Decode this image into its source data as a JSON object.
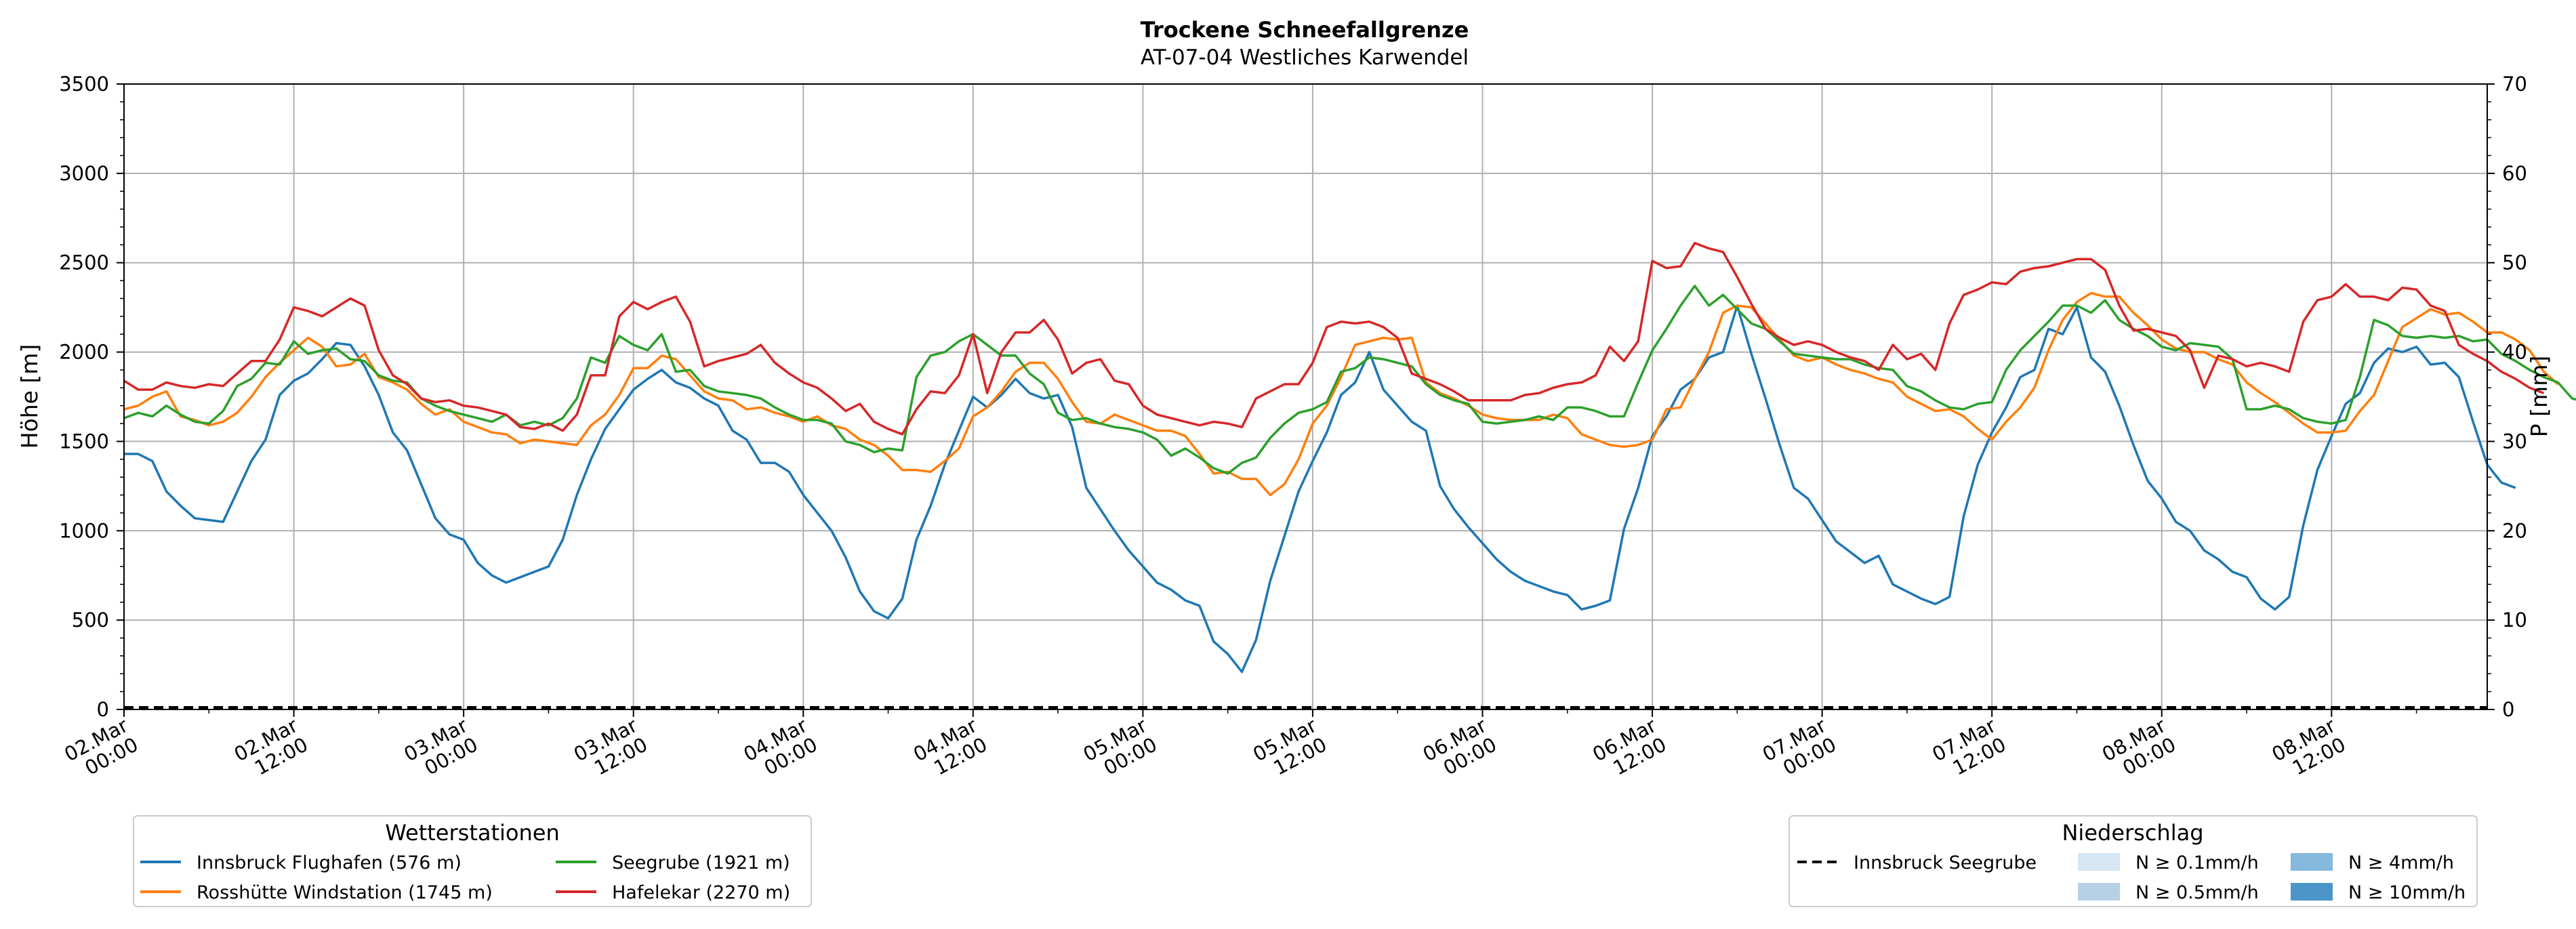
{
  "title": "Trockene Schneefallgrenze",
  "subtitle": "AT-07-04 Westliches Karwendel",
  "colors": {
    "grid": "#b0b0b0",
    "axis": "#000000",
    "precip_light": "#d6e6f4",
    "precip_mid": "#b6d0e6",
    "precip_high": "#84b8dd",
    "precip_max": "#4b95c8"
  },
  "chart_data": {
    "type": "line",
    "ylabel": "Höhe [m]",
    "ylabel_right": "P [mm]",
    "ylim": [
      0,
      3500
    ],
    "ylim_right": [
      0,
      70
    ],
    "y_ticks": [
      "0",
      "500",
      "1000",
      "1500",
      "2000",
      "2500",
      "3000",
      "3500"
    ],
    "y_ticks_right": [
      "0",
      "10",
      "20",
      "30",
      "40",
      "50",
      "60",
      "70"
    ],
    "grid": true,
    "x_start": "2024-03-02 00:00",
    "x_hours": 167,
    "x_ticks": [
      {
        "line1": "02.Mar",
        "line2": "00:00"
      },
      {
        "line1": "02.Mar",
        "line2": "12:00"
      },
      {
        "line1": "03.Mar",
        "line2": "00:00"
      },
      {
        "line1": "03.Mar",
        "line2": "12:00"
      },
      {
        "line1": "04.Mar",
        "line2": "00:00"
      },
      {
        "line1": "04.Mar",
        "line2": "12:00"
      },
      {
        "line1": "05.Mar",
        "line2": "00:00"
      },
      {
        "line1": "05.Mar",
        "line2": "12:00"
      },
      {
        "line1": "06.Mar",
        "line2": "00:00"
      },
      {
        "line1": "06.Mar",
        "line2": "12:00"
      },
      {
        "line1": "07.Mar",
        "line2": "00:00"
      },
      {
        "line1": "07.Mar",
        "line2": "12:00"
      },
      {
        "line1": "08.Mar",
        "line2": "00:00"
      },
      {
        "line1": "08.Mar",
        "line2": "12:00"
      }
    ],
    "series": [
      {
        "name": "Innsbruck Flughafen (576 m)",
        "color": "#1f77b4",
        "values": [
          1430,
          1430,
          1390,
          1220,
          1140,
          1070,
          1060,
          1050,
          1220,
          1390,
          1510,
          1760,
          1840,
          1880,
          1960,
          2050,
          2040,
          1920,
          1760,
          1550,
          1450,
          1260,
          1070,
          980,
          950,
          820,
          750,
          710,
          740,
          770,
          800,
          950,
          1200,
          1400,
          1570,
          1680,
          1790,
          1850,
          1900,
          1830,
          1800,
          1740,
          1700,
          1560,
          1510,
          1380,
          1380,
          1330,
          1200,
          1100,
          1000,
          850,
          660,
          550,
          510,
          620,
          950,
          1140,
          1370,
          1560,
          1750,
          1690,
          1760,
          1850,
          1770,
          1740,
          1760,
          1580,
          1240,
          1120,
          1000,
          890,
          800,
          710,
          670,
          610,
          580,
          380,
          310,
          210,
          390,
          720,
          970,
          1220,
          1390,
          1550,
          1760,
          1830,
          2000,
          1790,
          1700,
          1610,
          1560,
          1250,
          1120,
          1020,
          930,
          840,
          770,
          720,
          690,
          660,
          640,
          560,
          580,
          610,
          1010,
          1240,
          1530,
          1640,
          1790,
          1850,
          1970,
          2000,
          2260,
          1990,
          1740,
          1480,
          1240,
          1180,
          1060,
          940,
          880,
          820,
          860,
          700,
          660,
          620,
          590,
          630,
          1080,
          1370,
          1550,
          1690,
          1860,
          1900,
          2130,
          2100,
          2250,
          1970,
          1890,
          1700,
          1480,
          1280,
          1180,
          1050,
          1000,
          890,
          840,
          770,
          740,
          620,
          560,
          630,
          1030,
          1340,
          1530,
          1710,
          1770,
          1940,
          2020,
          2000,
          2030,
          1930,
          1940,
          1860,
          1610,
          1370,
          1270,
          1240
        ]
      },
      {
        "name": "Rosshütte Windstation (1745 m)",
        "color": "#ff7f0e",
        "values": [
          1680,
          1700,
          1750,
          1780,
          1640,
          1620,
          1590,
          1610,
          1660,
          1750,
          1860,
          1940,
          2010,
          2080,
          2030,
          1920,
          1930,
          1990,
          1860,
          1830,
          1790,
          1710,
          1650,
          1680,
          1610,
          1580,
          1550,
          1540,
          1490,
          1510,
          1500,
          1490,
          1480,
          1590,
          1650,
          1760,
          1910,
          1910,
          1980,
          1960,
          1870,
          1780,
          1740,
          1730,
          1680,
          1690,
          1660,
          1640,
          1610,
          1640,
          1590,
          1570,
          1510,
          1480,
          1420,
          1340,
          1340,
          1330,
          1390,
          1460,
          1640,
          1690,
          1780,
          1890,
          1940,
          1940,
          1850,
          1720,
          1610,
          1600,
          1650,
          1620,
          1590,
          1560,
          1560,
          1530,
          1430,
          1320,
          1330,
          1290,
          1290,
          1200,
          1260,
          1400,
          1600,
          1700,
          1860,
          2040,
          2060,
          2080,
          2070,
          2080,
          1830,
          1770,
          1740,
          1700,
          1650,
          1630,
          1620,
          1620,
          1620,
          1650,
          1630,
          1540,
          1510,
          1480,
          1470,
          1480,
          1510,
          1680,
          1690,
          1850,
          2000,
          2220,
          2260,
          2250,
          2160,
          2070,
          1980,
          1950,
          1970,
          1930,
          1900,
          1880,
          1850,
          1830,
          1750,
          1710,
          1670,
          1680,
          1640,
          1570,
          1510,
          1610,
          1690,
          1800,
          2010,
          2180,
          2280,
          2330,
          2310,
          2310,
          2220,
          2150,
          2070,
          2020,
          2000,
          2000,
          1960,
          1930,
          1830,
          1770,
          1720,
          1660,
          1600,
          1550,
          1550,
          1560,
          1670,
          1760,
          1950,
          2140,
          2190,
          2240,
          2210,
          2220,
          2170,
          2110,
          2110,
          2070,
          2010,
          1890,
          1820
        ]
      },
      {
        "name": "Seegrube (1921 m)",
        "color": "#2ca02c",
        "values": [
          1630,
          1660,
          1640,
          1700,
          1650,
          1610,
          1600,
          1670,
          1810,
          1850,
          1940,
          1930,
          2060,
          1990,
          2010,
          2020,
          1960,
          1950,
          1870,
          1840,
          1830,
          1740,
          1700,
          1670,
          1650,
          1630,
          1610,
          1650,
          1590,
          1610,
          1590,
          1630,
          1740,
          1970,
          1940,
          2090,
          2040,
          2010,
          2100,
          1890,
          1900,
          1810,
          1780,
          1770,
          1760,
          1740,
          1690,
          1650,
          1620,
          1620,
          1600,
          1500,
          1480,
          1440,
          1460,
          1450,
          1860,
          1980,
          2000,
          2060,
          2100,
          2040,
          1980,
          1980,
          1880,
          1820,
          1660,
          1620,
          1630,
          1600,
          1580,
          1570,
          1550,
          1510,
          1420,
          1460,
          1410,
          1350,
          1320,
          1380,
          1410,
          1520,
          1600,
          1660,
          1680,
          1720,
          1890,
          1910,
          1970,
          1960,
          1940,
          1920,
          1820,
          1760,
          1730,
          1710,
          1610,
          1600,
          1610,
          1620,
          1640,
          1620,
          1690,
          1690,
          1670,
          1640,
          1640,
          1830,
          2010,
          2130,
          2260,
          2370,
          2260,
          2320,
          2240,
          2160,
          2130,
          2060,
          1990,
          1980,
          1970,
          1960,
          1960,
          1930,
          1910,
          1900,
          1810,
          1780,
          1730,
          1690,
          1680,
          1710,
          1720,
          1900,
          2010,
          2090,
          2170,
          2260,
          2260,
          2220,
          2290,
          2180,
          2130,
          2090,
          2030,
          2010,
          2050,
          2040,
          2030,
          1960,
          1680,
          1680,
          1700,
          1680,
          1630,
          1610,
          1600,
          1620,
          1860,
          2180,
          2150,
          2090,
          2080,
          2090,
          2080,
          2090,
          2060,
          2070,
          1990,
          1950,
          1900,
          1860,
          1830,
          1740,
          1720
        ]
      },
      {
        "name": "Hafelekar (2270 m)",
        "color": "#d62728",
        "values": [
          1840,
          1790,
          1790,
          1830,
          1810,
          1800,
          1820,
          1810,
          1880,
          1950,
          1950,
          2070,
          2250,
          2230,
          2200,
          2250,
          2300,
          2260,
          2010,
          1870,
          1820,
          1740,
          1720,
          1730,
          1700,
          1690,
          1670,
          1650,
          1580,
          1570,
          1600,
          1560,
          1650,
          1870,
          1870,
          2200,
          2280,
          2240,
          2280,
          2310,
          2170,
          1920,
          1950,
          1970,
          1990,
          2040,
          1940,
          1880,
          1830,
          1800,
          1740,
          1670,
          1710,
          1610,
          1570,
          1540,
          1680,
          1780,
          1770,
          1870,
          2100,
          1770,
          2000,
          2110,
          2110,
          2180,
          2070,
          1880,
          1940,
          1960,
          1840,
          1820,
          1700,
          1650,
          1630,
          1610,
          1590,
          1610,
          1600,
          1580,
          1740,
          1780,
          1820,
          1820,
          1940,
          2140,
          2170,
          2160,
          2170,
          2140,
          2080,
          1880,
          1850,
          1820,
          1780,
          1730,
          1730,
          1730,
          1730,
          1760,
          1770,
          1800,
          1820,
          1830,
          1870,
          2030,
          1950,
          2060,
          2510,
          2470,
          2480,
          2610,
          2580,
          2560,
          2420,
          2270,
          2130,
          2080,
          2040,
          2060,
          2040,
          2000,
          1970,
          1950,
          1900,
          2040,
          1960,
          1990,
          1900,
          2160,
          2320,
          2350,
          2390,
          2380,
          2450,
          2470,
          2480,
          2500,
          2520,
          2520,
          2460,
          2260,
          2120,
          2130,
          2110,
          2090,
          2010,
          1800,
          1980,
          1960,
          1920,
          1940,
          1920,
          1890,
          2170,
          2290,
          2310,
          2380,
          2310,
          2310,
          2290,
          2360,
          2350,
          2260,
          2230,
          2040,
          1990,
          1950,
          1890,
          1850,
          1800,
          1770
        ]
      }
    ],
    "precip_series": {
      "name": "Innsbruck Seegrube",
      "color": "#000000",
      "values": [
        0,
        0
      ],
      "style": "dashed"
    },
    "legend_stations": {
      "title": "Wetterstationen",
      "placement": "bottom-left",
      "items": [
        "Innsbruck Flughafen (576 m)",
        "Rosshütte Windstation (1745 m)",
        "Seegrube (1921 m)",
        "Hafelekar (2270 m)"
      ]
    },
    "legend_precip": {
      "title": "Niederschlag",
      "placement": "bottom-right",
      "line_label": "Innsbruck Seegrube",
      "bins": [
        "N ≥ 0.1mm/h",
        "N ≥ 0.5mm/h",
        "N ≥ 4mm/h",
        "N ≥ 10mm/h"
      ]
    }
  }
}
